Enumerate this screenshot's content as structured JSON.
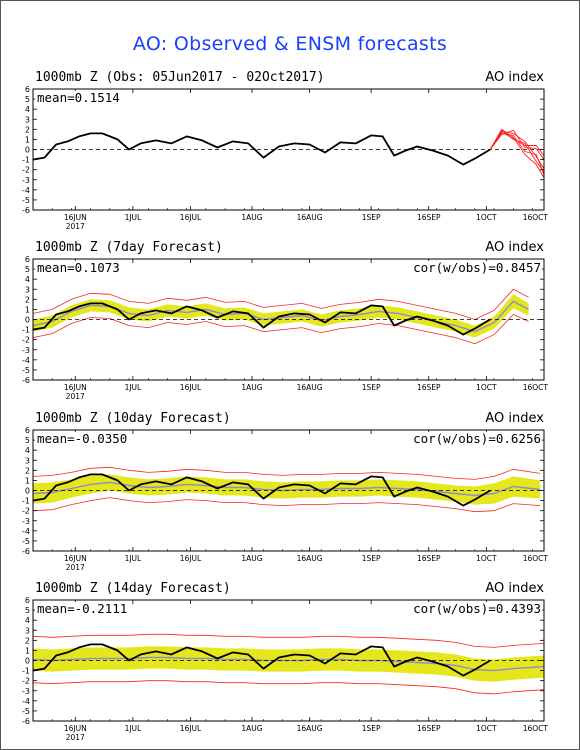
{
  "title": "AO: Observed & ENSM forecasts",
  "colors": {
    "title": "#1a40ff",
    "observed": "#000000",
    "forecast_members": "#ff2222",
    "ensemble_mean": "#8c8cd0",
    "spread_band": "#e6e61c"
  },
  "chart_data": [
    {
      "type": "line",
      "title": "1000mb Z (Obs: 05Jun2017 - 02Oct2017)",
      "index_label": "AO index",
      "mean_label": "mean=0.1514",
      "cor_label": "",
      "ylim": [
        -6,
        6
      ],
      "yticks": [
        "6",
        "5",
        "4",
        "3",
        "2",
        "1",
        "0",
        "-1",
        "-2",
        "-3",
        "-4",
        "-5",
        "-6"
      ],
      "xlim": [
        "2017-06-05",
        "2017-10-16"
      ],
      "xticks": [
        "16JUN",
        "1JUL",
        "16JUL",
        "1AUG",
        "16AUG",
        "1SEP",
        "16SEP",
        "1OCT",
        "16OCT"
      ],
      "xtick_year": "2017",
      "observed": {
        "x": [
          "2017-06-05",
          "2017-06-08",
          "2017-06-11",
          "2017-06-14",
          "2017-06-17",
          "2017-06-20",
          "2017-06-23",
          "2017-06-27",
          "2017-06-30",
          "2017-07-03",
          "2017-07-07",
          "2017-07-11",
          "2017-07-15",
          "2017-07-19",
          "2017-07-23",
          "2017-07-27",
          "2017-07-31",
          "2017-08-04",
          "2017-08-08",
          "2017-08-12",
          "2017-08-16",
          "2017-08-20",
          "2017-08-24",
          "2017-08-28",
          "2017-09-01",
          "2017-09-04",
          "2017-09-07",
          "2017-09-10",
          "2017-09-13",
          "2017-09-17",
          "2017-09-21",
          "2017-09-25",
          "2017-09-28",
          "2017-10-02"
        ],
        "y": [
          -1.0,
          -0.8,
          0.5,
          0.8,
          1.3,
          1.6,
          1.6,
          1.0,
          0.0,
          0.6,
          0.9,
          0.6,
          1.3,
          0.9,
          0.2,
          0.8,
          0.6,
          -0.8,
          0.3,
          0.6,
          0.5,
          -0.3,
          0.7,
          0.6,
          1.4,
          1.3,
          -0.6,
          -0.1,
          0.3,
          -0.1,
          -0.6,
          -1.5,
          -0.9,
          0.0
        ]
      },
      "forecast_members": [
        {
          "x": [
            "2017-10-02",
            "2017-10-05",
            "2017-10-08",
            "2017-10-11",
            "2017-10-14",
            "2017-10-16"
          ],
          "y": [
            0.0,
            1.8,
            1.6,
            0.8,
            -0.7,
            -1.9
          ]
        },
        {
          "x": [
            "2017-10-02",
            "2017-10-05",
            "2017-10-08",
            "2017-10-11",
            "2017-10-14",
            "2017-10-16"
          ],
          "y": [
            0.0,
            2.0,
            1.2,
            -0.5,
            -1.5,
            -2.8
          ]
        },
        {
          "x": [
            "2017-10-02",
            "2017-10-05",
            "2017-10-08",
            "2017-10-11",
            "2017-10-14",
            "2017-10-16"
          ],
          "y": [
            0.0,
            1.5,
            1.9,
            0.2,
            0.1,
            -1.0
          ]
        },
        {
          "x": [
            "2017-10-02",
            "2017-10-05",
            "2017-10-08",
            "2017-10-11",
            "2017-10-14",
            "2017-10-16"
          ],
          "y": [
            0.0,
            1.9,
            1.0,
            0.6,
            -1.2,
            -2.2
          ]
        },
        {
          "x": [
            "2017-10-02",
            "2017-10-05",
            "2017-10-08",
            "2017-10-11",
            "2017-10-14",
            "2017-10-16"
          ],
          "y": [
            0.0,
            1.6,
            1.4,
            -0.2,
            -0.5,
            -2.5
          ]
        },
        {
          "x": [
            "2017-10-02",
            "2017-10-05",
            "2017-10-08",
            "2017-10-11",
            "2017-10-14",
            "2017-10-16"
          ],
          "y": [
            0.0,
            1.7,
            1.1,
            0.4,
            0.4,
            -0.6
          ]
        }
      ],
      "ensemble_mean": null,
      "band": null
    },
    {
      "type": "line",
      "title": "1000mb Z (7day Forecast)",
      "index_label": "AO index",
      "mean_label": "mean=0.1073",
      "cor_label": "cor(w/obs)=0.8457",
      "ylim": [
        -6,
        6
      ],
      "yticks": [
        "6",
        "5",
        "4",
        "3",
        "2",
        "1",
        "0",
        "-1",
        "-2",
        "-3",
        "-4",
        "-5",
        "-6"
      ],
      "xlim": [
        "2017-06-05",
        "2017-10-16"
      ],
      "xticks": [
        "16JUN",
        "1JUL",
        "16JUL",
        "1AUG",
        "16AUG",
        "1SEP",
        "16SEP",
        "1OCT",
        "16OCT"
      ],
      "xtick_year": "2017",
      "observed": {
        "x": [
          "2017-06-05",
          "2017-06-08",
          "2017-06-11",
          "2017-06-14",
          "2017-06-17",
          "2017-06-20",
          "2017-06-23",
          "2017-06-27",
          "2017-06-30",
          "2017-07-03",
          "2017-07-07",
          "2017-07-11",
          "2017-07-15",
          "2017-07-19",
          "2017-07-23",
          "2017-07-27",
          "2017-07-31",
          "2017-08-04",
          "2017-08-08",
          "2017-08-12",
          "2017-08-16",
          "2017-08-20",
          "2017-08-24",
          "2017-08-28",
          "2017-09-01",
          "2017-09-04",
          "2017-09-07",
          "2017-09-10",
          "2017-09-13",
          "2017-09-17",
          "2017-09-21",
          "2017-09-25",
          "2017-09-28",
          "2017-10-02"
        ],
        "y": [
          -1.0,
          -0.8,
          0.5,
          0.8,
          1.3,
          1.6,
          1.6,
          1.0,
          0.0,
          0.6,
          0.9,
          0.6,
          1.3,
          0.9,
          0.2,
          0.8,
          0.6,
          -0.8,
          0.3,
          0.6,
          0.5,
          -0.3,
          0.7,
          0.6,
          1.4,
          1.3,
          -0.6,
          -0.1,
          0.3,
          -0.1,
          -0.6,
          -1.5,
          -0.9,
          0.0
        ]
      },
      "ensemble_mean": {
        "x": [
          "2017-06-05",
          "2017-06-10",
          "2017-06-15",
          "2017-06-20",
          "2017-06-25",
          "2017-06-30",
          "2017-07-05",
          "2017-07-10",
          "2017-07-15",
          "2017-07-20",
          "2017-07-25",
          "2017-07-30",
          "2017-08-04",
          "2017-08-09",
          "2017-08-14",
          "2017-08-19",
          "2017-08-24",
          "2017-08-29",
          "2017-09-03",
          "2017-09-08",
          "2017-09-13",
          "2017-09-18",
          "2017-09-23",
          "2017-09-28",
          "2017-10-03",
          "2017-10-08",
          "2017-10-12"
        ],
        "y": [
          -0.6,
          -0.2,
          0.8,
          1.4,
          1.3,
          0.6,
          0.4,
          0.9,
          0.7,
          1.0,
          0.5,
          0.6,
          0.0,
          0.2,
          0.4,
          -0.1,
          0.3,
          0.5,
          0.8,
          0.6,
          0.2,
          -0.2,
          -0.6,
          -1.2,
          -0.3,
          1.8,
          1.0
        ]
      },
      "band": {
        "lower": [
          -1.2,
          -0.8,
          0.2,
          0.8,
          0.7,
          0.0,
          -0.2,
          0.3,
          0.1,
          0.4,
          -0.1,
          0.0,
          -0.6,
          -0.4,
          -0.2,
          -0.7,
          -0.3,
          -0.1,
          0.2,
          0.0,
          -0.4,
          -0.8,
          -1.2,
          -1.8,
          -0.9,
          1.1,
          0.4
        ],
        "upper": [
          0.0,
          0.4,
          1.4,
          2.0,
          1.9,
          1.2,
          1.0,
          1.5,
          1.3,
          1.6,
          1.1,
          1.2,
          0.6,
          0.8,
          1.0,
          0.5,
          0.9,
          1.1,
          1.4,
          1.2,
          0.8,
          0.4,
          0.0,
          -0.6,
          0.3,
          2.5,
          1.6
        ]
      },
      "spread": {
        "lower": [
          -1.8,
          -1.4,
          -0.4,
          0.2,
          0.1,
          -0.6,
          -0.8,
          -0.3,
          -0.5,
          -0.2,
          -0.7,
          -0.6,
          -1.2,
          -1.0,
          -0.8,
          -1.3,
          -0.9,
          -0.7,
          -0.4,
          -0.6,
          -1.0,
          -1.4,
          -1.8,
          -2.4,
          -1.5,
          0.5,
          -0.2
        ],
        "upper": [
          0.6,
          1.0,
          2.0,
          2.6,
          2.5,
          1.8,
          1.6,
          2.1,
          1.9,
          2.2,
          1.7,
          1.8,
          1.2,
          1.4,
          1.6,
          1.1,
          1.5,
          1.7,
          2.0,
          1.8,
          1.4,
          1.0,
          0.6,
          0.0,
          0.9,
          3.0,
          2.2
        ]
      }
    },
    {
      "type": "line",
      "title": "1000mb Z (10day Forecast)",
      "index_label": "AO index",
      "mean_label": "mean=-0.0350",
      "cor_label": "cor(w/obs)=0.6256",
      "ylim": [
        -6,
        6
      ],
      "yticks": [
        "6",
        "5",
        "4",
        "3",
        "2",
        "1",
        "0",
        "-1",
        "-2",
        "-3",
        "-4",
        "-5",
        "-6"
      ],
      "xlim": [
        "2017-06-05",
        "2017-10-16"
      ],
      "xticks": [
        "16JUN",
        "1JUL",
        "16JUL",
        "1AUG",
        "16AUG",
        "1SEP",
        "16SEP",
        "1OCT",
        "16OCT"
      ],
      "xtick_year": "2017",
      "observed": {
        "x": [
          "2017-06-05",
          "2017-06-08",
          "2017-06-11",
          "2017-06-14",
          "2017-06-17",
          "2017-06-20",
          "2017-06-23",
          "2017-06-27",
          "2017-06-30",
          "2017-07-03",
          "2017-07-07",
          "2017-07-11",
          "2017-07-15",
          "2017-07-19",
          "2017-07-23",
          "2017-07-27",
          "2017-07-31",
          "2017-08-04",
          "2017-08-08",
          "2017-08-12",
          "2017-08-16",
          "2017-08-20",
          "2017-08-24",
          "2017-08-28",
          "2017-09-01",
          "2017-09-04",
          "2017-09-07",
          "2017-09-10",
          "2017-09-13",
          "2017-09-17",
          "2017-09-21",
          "2017-09-25",
          "2017-09-28",
          "2017-10-02"
        ],
        "y": [
          -1.0,
          -0.8,
          0.5,
          0.8,
          1.3,
          1.6,
          1.6,
          1.0,
          0.0,
          0.6,
          0.9,
          0.6,
          1.3,
          0.9,
          0.2,
          0.8,
          0.6,
          -0.8,
          0.3,
          0.6,
          0.5,
          -0.3,
          0.7,
          0.6,
          1.4,
          1.3,
          -0.6,
          -0.1,
          0.3,
          -0.1,
          -0.6,
          -1.5,
          -0.9,
          0.0
        ]
      },
      "ensemble_mean": {
        "x": [
          "2017-06-05",
          "2017-06-10",
          "2017-06-15",
          "2017-06-20",
          "2017-06-25",
          "2017-06-30",
          "2017-07-05",
          "2017-07-10",
          "2017-07-15",
          "2017-07-20",
          "2017-07-25",
          "2017-07-30",
          "2017-08-04",
          "2017-08-09",
          "2017-08-14",
          "2017-08-19",
          "2017-08-24",
          "2017-08-29",
          "2017-09-03",
          "2017-09-08",
          "2017-09-13",
          "2017-09-18",
          "2017-09-23",
          "2017-09-28",
          "2017-10-03",
          "2017-10-08",
          "2017-10-15"
        ],
        "y": [
          -0.3,
          -0.2,
          0.2,
          0.6,
          0.8,
          0.5,
          0.3,
          0.4,
          0.6,
          0.5,
          0.3,
          0.3,
          0.1,
          0.0,
          0.1,
          0.1,
          0.2,
          0.2,
          0.3,
          0.2,
          0.1,
          -0.1,
          -0.3,
          -0.5,
          -0.3,
          0.4,
          0.1
        ]
      },
      "band": {
        "lower": [
          -1.3,
          -1.2,
          -0.7,
          -0.3,
          0.0,
          -0.3,
          -0.5,
          -0.4,
          -0.2,
          -0.3,
          -0.5,
          -0.5,
          -0.7,
          -0.8,
          -0.7,
          -0.7,
          -0.6,
          -0.6,
          -0.5,
          -0.6,
          -0.7,
          -0.9,
          -1.1,
          -1.4,
          -1.3,
          -0.6,
          -0.8
        ],
        "upper": [
          0.7,
          0.8,
          1.1,
          1.5,
          1.6,
          1.3,
          1.1,
          1.2,
          1.4,
          1.3,
          1.1,
          1.1,
          0.9,
          0.8,
          0.9,
          0.9,
          1.0,
          1.0,
          1.1,
          1.0,
          0.9,
          0.7,
          0.5,
          0.4,
          0.7,
          1.4,
          1.0
        ]
      },
      "spread": {
        "lower": [
          -2.0,
          -1.9,
          -1.4,
          -1.0,
          -0.7,
          -1.0,
          -1.2,
          -1.1,
          -0.9,
          -1.0,
          -1.2,
          -1.2,
          -1.4,
          -1.5,
          -1.4,
          -1.4,
          -1.3,
          -1.3,
          -1.2,
          -1.3,
          -1.4,
          -1.6,
          -1.8,
          -2.1,
          -2.0,
          -1.3,
          -1.5
        ],
        "upper": [
          1.4,
          1.5,
          1.8,
          2.2,
          2.3,
          2.0,
          1.8,
          1.9,
          2.1,
          2.0,
          1.8,
          1.8,
          1.6,
          1.5,
          1.6,
          1.6,
          1.7,
          1.7,
          1.8,
          1.7,
          1.6,
          1.4,
          1.2,
          1.1,
          1.4,
          2.1,
          1.7
        ]
      }
    },
    {
      "type": "line",
      "title": "1000mb Z (14day Forecast)",
      "index_label": "AO index",
      "mean_label": "mean=-0.2111",
      "cor_label": "cor(w/obs)=0.4393",
      "ylim": [
        -6,
        6
      ],
      "yticks": [
        "6",
        "5",
        "4",
        "3",
        "2",
        "1",
        "0",
        "-1",
        "-2",
        "-3",
        "-4",
        "-5",
        "-6"
      ],
      "xlim": [
        "2017-06-05",
        "2017-10-16"
      ],
      "xticks": [
        "16JUN",
        "1JUL",
        "16JUL",
        "1AUG",
        "16AUG",
        "1SEP",
        "16SEP",
        "1OCT",
        "16OCT"
      ],
      "xtick_year": "2017",
      "observed": {
        "x": [
          "2017-06-05",
          "2017-06-08",
          "2017-06-11",
          "2017-06-14",
          "2017-06-17",
          "2017-06-20",
          "2017-06-23",
          "2017-06-27",
          "2017-06-30",
          "2017-07-03",
          "2017-07-07",
          "2017-07-11",
          "2017-07-15",
          "2017-07-19",
          "2017-07-23",
          "2017-07-27",
          "2017-07-31",
          "2017-08-04",
          "2017-08-08",
          "2017-08-12",
          "2017-08-16",
          "2017-08-20",
          "2017-08-24",
          "2017-08-28",
          "2017-09-01",
          "2017-09-04",
          "2017-09-07",
          "2017-09-10",
          "2017-09-13",
          "2017-09-17",
          "2017-09-21",
          "2017-09-25",
          "2017-09-28",
          "2017-10-02"
        ],
        "y": [
          -1.0,
          -0.8,
          0.5,
          0.8,
          1.3,
          1.6,
          1.6,
          1.0,
          0.0,
          0.6,
          0.9,
          0.6,
          1.3,
          0.9,
          0.2,
          0.8,
          0.6,
          -0.8,
          0.3,
          0.6,
          0.5,
          -0.3,
          0.7,
          0.6,
          1.4,
          1.3,
          -0.6,
          -0.1,
          0.3,
          -0.1,
          -0.6,
          -1.5,
          -0.9,
          0.0
        ]
      },
      "ensemble_mean": {
        "x": [
          "2017-06-05",
          "2017-06-10",
          "2017-06-15",
          "2017-06-20",
          "2017-06-25",
          "2017-06-30",
          "2017-07-05",
          "2017-07-10",
          "2017-07-15",
          "2017-07-20",
          "2017-07-25",
          "2017-07-30",
          "2017-08-04",
          "2017-08-09",
          "2017-08-14",
          "2017-08-19",
          "2017-08-24",
          "2017-08-29",
          "2017-09-03",
          "2017-09-08",
          "2017-09-13",
          "2017-09-18",
          "2017-09-23",
          "2017-09-28",
          "2017-10-03",
          "2017-10-08",
          "2017-10-16"
        ],
        "y": [
          0.1,
          0.0,
          0.1,
          0.2,
          0.2,
          0.2,
          0.3,
          0.3,
          0.2,
          0.2,
          0.1,
          0.1,
          0.0,
          0.0,
          0.0,
          0.1,
          0.1,
          0.0,
          0.0,
          -0.1,
          -0.2,
          -0.3,
          -0.5,
          -0.9,
          -1.0,
          -0.8,
          -0.6
        ]
      },
      "band": {
        "lower": [
          -1.0,
          -1.1,
          -1.0,
          -0.9,
          -0.9,
          -0.9,
          -0.8,
          -0.8,
          -0.9,
          -0.9,
          -1.0,
          -1.0,
          -1.1,
          -1.1,
          -1.1,
          -1.0,
          -1.0,
          -1.1,
          -1.1,
          -1.2,
          -1.3,
          -1.4,
          -1.6,
          -2.0,
          -2.1,
          -1.9,
          -1.7
        ],
        "upper": [
          1.2,
          1.1,
          1.2,
          1.3,
          1.3,
          1.3,
          1.4,
          1.4,
          1.3,
          1.3,
          1.2,
          1.2,
          1.1,
          1.1,
          1.1,
          1.2,
          1.2,
          1.1,
          1.1,
          1.0,
          0.9,
          0.8,
          0.6,
          0.2,
          0.1,
          0.3,
          0.5
        ]
      },
      "spread": {
        "lower": [
          -2.2,
          -2.3,
          -2.2,
          -2.1,
          -2.1,
          -2.1,
          -2.0,
          -2.0,
          -2.1,
          -2.1,
          -2.2,
          -2.2,
          -2.3,
          -2.3,
          -2.3,
          -2.2,
          -2.2,
          -2.3,
          -2.3,
          -2.4,
          -2.5,
          -2.6,
          -2.8,
          -3.2,
          -3.3,
          -3.1,
          -2.9
        ],
        "upper": [
          2.4,
          2.3,
          2.4,
          2.5,
          2.5,
          2.5,
          2.6,
          2.6,
          2.5,
          2.5,
          2.4,
          2.4,
          2.3,
          2.3,
          2.3,
          2.4,
          2.4,
          2.3,
          2.3,
          2.2,
          2.1,
          2.0,
          1.8,
          1.4,
          1.3,
          1.5,
          1.7
        ]
      }
    }
  ]
}
